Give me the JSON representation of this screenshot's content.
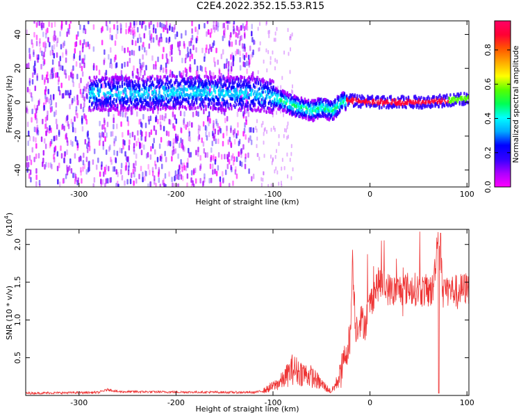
{
  "title": "C2E4.2022.352.15.53.R15",
  "colors": {
    "snr_line": "#ee3333",
    "colorbar": [
      "#ff00ff",
      "#aa00ff",
      "#3300ff",
      "#0000ff",
      "#00aaff",
      "#00ffff",
      "#00ff55",
      "#55ff00",
      "#ffff00",
      "#ffaa00",
      "#ff5500",
      "#ff0033",
      "#ff0066"
    ]
  },
  "chart_data": [
    {
      "type": "heatmap",
      "xlabel": "Height of straight line (km)",
      "ylabel": "Frequency (Hz)",
      "xlim": [
        -355,
        102
      ],
      "ylim": [
        -50,
        48
      ],
      "xticks": [
        -300,
        -200,
        -100,
        0,
        100
      ],
      "yticks": [
        -40,
        -20,
        0,
        20,
        40
      ],
      "colorbar": {
        "label": "Normalized spectral amplitude",
        "range": [
          0,
          0.97
        ],
        "ticks": [
          0.0,
          0.2,
          0.4,
          0.6,
          0.8
        ]
      },
      "ridge": {
        "x": [
          -355,
          -300,
          -250,
          -200,
          -150,
          -120,
          -100,
          -80,
          -60,
          -50,
          -40,
          -30,
          -20,
          0,
          50,
          80,
          100
        ],
        "frequency": [
          5,
          5,
          5,
          6,
          5,
          5,
          3,
          -2,
          -5,
          -3,
          -5,
          0,
          1,
          0,
          0,
          1,
          2
        ]
      }
    },
    {
      "type": "line",
      "xlabel": "Height of straight line (km)",
      "ylabel": "SNR (10 * v/v)",
      "y_scale_label": "(x10",
      "y_scale_exponent": "4",
      "xlim": [
        -355,
        102
      ],
      "ylim": [
        0,
        2.2
      ],
      "xticks": [
        -300,
        -200,
        -100,
        0,
        100
      ],
      "yticks": [
        0.5,
        1.0,
        1.5,
        2.0
      ],
      "series": [
        {
          "x": [
            -355,
            -280,
            -270,
            -260,
            -120,
            -110,
            -100,
            -90,
            -80,
            -70,
            -60,
            -50,
            -40,
            -35,
            -30,
            -25,
            -20,
            -18,
            -15,
            -10,
            -5,
            0,
            5,
            10,
            15,
            20,
            25,
            30,
            40,
            50,
            60,
            65,
            70,
            75,
            80,
            90,
            100
          ],
          "y": [
            0.03,
            0.04,
            0.08,
            0.05,
            0.04,
            0.06,
            0.12,
            0.2,
            0.35,
            0.3,
            0.25,
            0.15,
            0.05,
            0.15,
            0.3,
            0.55,
            0.8,
            1.85,
            0.9,
            1.0,
            0.95,
            1.2,
            1.4,
            1.5,
            1.45,
            1.4,
            1.38,
            1.4,
            1.42,
            1.4,
            1.38,
            1.4,
            2.15,
            1.45,
            1.4,
            1.38,
            1.42
          ]
        }
      ]
    }
  ]
}
